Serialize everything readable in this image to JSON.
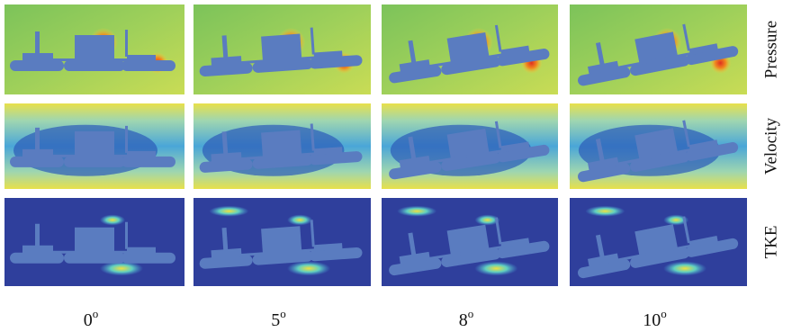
{
  "row_labels": [
    "Pressure",
    "Velocity",
    "TKE"
  ],
  "column_labels": [
    {
      "angle": "0",
      "degree": "o"
    },
    {
      "angle": "5",
      "degree": "o"
    },
    {
      "angle": "8",
      "degree": "o"
    },
    {
      "angle": "10",
      "degree": "o"
    }
  ]
}
